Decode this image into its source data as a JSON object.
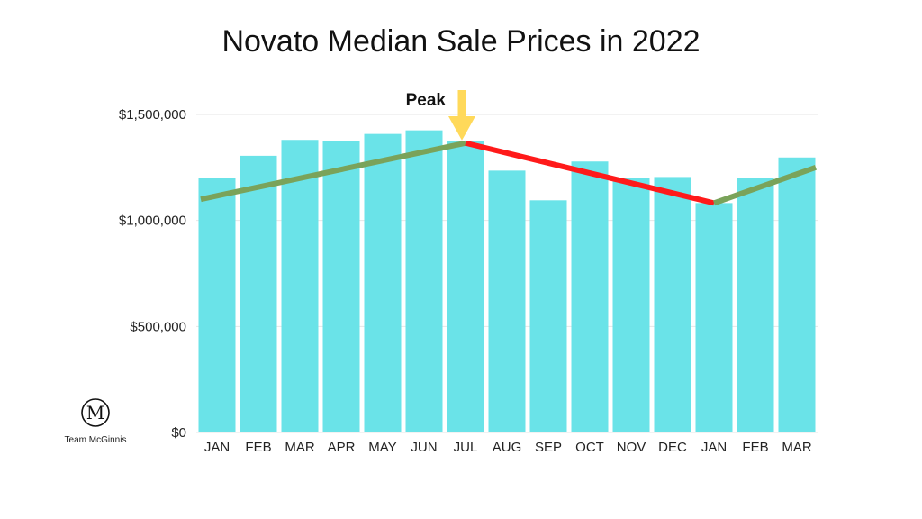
{
  "chart_data": {
    "type": "bar",
    "title": "Novato Median Sale Prices in 2022",
    "categories": [
      "JAN",
      "FEB",
      "MAR",
      "APR",
      "MAY",
      "JUN",
      "JUL",
      "AUG",
      "SEP",
      "OCT",
      "NOV",
      "DEC",
      "JAN",
      "FEB",
      "MAR"
    ],
    "values": [
      1200000,
      1305000,
      1380000,
      1373000,
      1408000,
      1425000,
      1375000,
      1235000,
      1095000,
      1278000,
      1200000,
      1205000,
      1082000,
      1200000,
      1297000
    ],
    "ylim": [
      0,
      1500000
    ],
    "yticks": [
      0,
      500000,
      1000000,
      1500000
    ],
    "ytick_labels": [
      "$0",
      "$500,000",
      "$1,000,000",
      "$1,500,000"
    ],
    "grid": true,
    "bar_color": "#6ae3e8",
    "trend_lines": [
      {
        "from_index": 0,
        "to_index": 6,
        "from_value": 1100000,
        "to_value": 1365000,
        "color": "#7aa35a"
      },
      {
        "from_index": 6,
        "to_index": 12,
        "from_value": 1365000,
        "to_value": 1082000,
        "color": "#ff1a1a"
      },
      {
        "from_index": 12,
        "to_index": 14,
        "from_value": 1082000,
        "to_value": 1250000,
        "color": "#7aa35a"
      }
    ],
    "annotation": {
      "text": "Peak",
      "index": 6,
      "arrow_color": "#ffd95a"
    }
  },
  "logo": {
    "monogram": "M",
    "name": "Team McGinnis"
  }
}
